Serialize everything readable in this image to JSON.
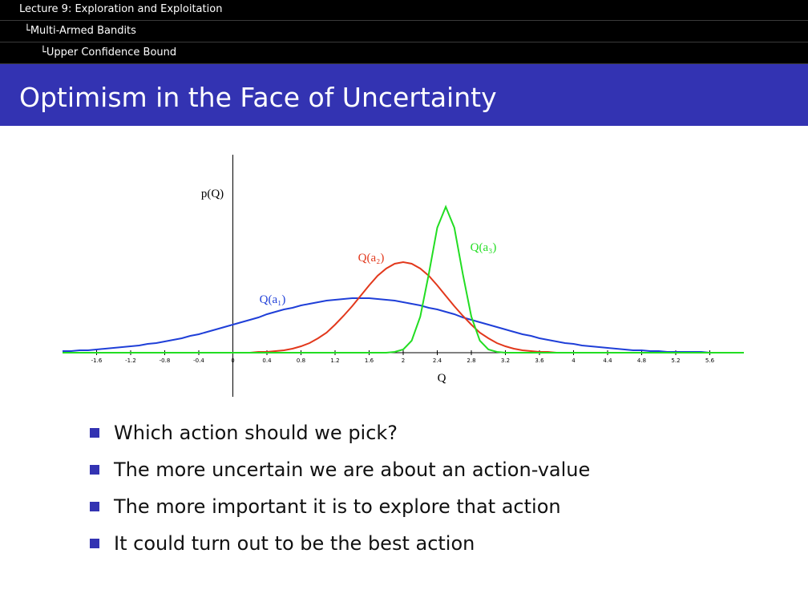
{
  "header": {
    "lecture": "Lecture 9: Exploration and Exploitation",
    "section": "Multi-Armed Bandits",
    "subsection": "Upper Confidence Bound"
  },
  "title": "Optimism in the Face of Uncertainty",
  "chart_data": {
    "type": "line",
    "x_label": "Q",
    "y_label": "p(Q)",
    "x": [
      -2,
      -1.9,
      -1.8,
      -1.7,
      -1.6,
      -1.5,
      -1.4,
      -1.3,
      -1.2,
      -1.1,
      -1,
      -0.9,
      -0.8,
      -0.7,
      -0.6,
      -0.5,
      -0.4,
      -0.3,
      -0.2,
      -0.1,
      0,
      0.1,
      0.2,
      0.3,
      0.4,
      0.5,
      0.6,
      0.7,
      0.8,
      0.9,
      1,
      1.1,
      1.2,
      1.3,
      1.4,
      1.5,
      1.6,
      1.7,
      1.8,
      1.9,
      2,
      2.1,
      2.2,
      2.3,
      2.4,
      2.5,
      2.6,
      2.7,
      2.8,
      2.9,
      3,
      3.1,
      3.2,
      3.3,
      3.4,
      3.5,
      3.6,
      3.7,
      3.8,
      3.9,
      4,
      4.1,
      4.2,
      4.3,
      4.4,
      4.5,
      4.6,
      4.7,
      4.8,
      4.9,
      5,
      5.1,
      5.2,
      5.3,
      5.4,
      5.5,
      5.6,
      5.7,
      5.8,
      5.9,
      6
    ],
    "series": [
      {
        "name": "Q(a₁)",
        "color": "#1f3fd8",
        "values": [
          0.02,
          0.02,
          0.03,
          0.03,
          0.04,
          0.05,
          0.06,
          0.07,
          0.08,
          0.09,
          0.11,
          0.12,
          0.14,
          0.16,
          0.18,
          0.21,
          0.23,
          0.26,
          0.29,
          0.32,
          0.35,
          0.38,
          0.41,
          0.44,
          0.48,
          0.51,
          0.54,
          0.56,
          0.59,
          0.61,
          0.63,
          0.65,
          0.66,
          0.67,
          0.68,
          0.68,
          0.68,
          0.67,
          0.66,
          0.65,
          0.63,
          0.61,
          0.59,
          0.56,
          0.54,
          0.51,
          0.48,
          0.44,
          0.41,
          0.38,
          0.35,
          0.32,
          0.29,
          0.26,
          0.23,
          0.21,
          0.18,
          0.16,
          0.14,
          0.12,
          0.11,
          0.09,
          0.08,
          0.07,
          0.06,
          0.05,
          0.04,
          0.03,
          0.03,
          0.02,
          0.02,
          0.01,
          0.01,
          0.01,
          0.01,
          0.01,
          0,
          0,
          0,
          0,
          0
        ]
      },
      {
        "name": "Q(a₂)",
        "color": "#e2381c",
        "values": [
          0,
          0,
          0,
          0,
          0,
          0,
          0,
          0,
          0,
          0,
          0,
          0,
          0,
          0,
          0,
          0,
          0,
          0,
          0,
          0,
          0,
          0,
          0,
          0.01,
          0.01,
          0.02,
          0.03,
          0.05,
          0.08,
          0.12,
          0.18,
          0.25,
          0.35,
          0.46,
          0.58,
          0.71,
          0.84,
          0.96,
          1.05,
          1.11,
          1.13,
          1.11,
          1.05,
          0.96,
          0.84,
          0.71,
          0.58,
          0.46,
          0.35,
          0.25,
          0.18,
          0.12,
          0.08,
          0.05,
          0.03,
          0.02,
          0.01,
          0.01,
          0,
          0,
          0,
          0,
          0,
          0,
          0,
          0,
          0,
          0,
          0,
          0,
          0,
          0,
          0,
          0,
          0,
          0,
          0,
          0,
          0,
          0,
          0
        ]
      },
      {
        "name": "Q(a₃)",
        "color": "#22dd22",
        "values": [
          0,
          0,
          0,
          0,
          0,
          0,
          0,
          0,
          0,
          0,
          0,
          0,
          0,
          0,
          0,
          0,
          0,
          0,
          0,
          0,
          0,
          0,
          0,
          0,
          0,
          0,
          0,
          0,
          0,
          0,
          0,
          0,
          0,
          0,
          0,
          0,
          0,
          0,
          0,
          0.01,
          0.04,
          0.15,
          0.45,
          0.98,
          1.56,
          1.82,
          1.56,
          0.98,
          0.45,
          0.15,
          0.04,
          0.01,
          0,
          0,
          0,
          0,
          0,
          0,
          0,
          0,
          0,
          0,
          0,
          0,
          0,
          0,
          0,
          0,
          0,
          0,
          0,
          0,
          0,
          0,
          0,
          0,
          0,
          0,
          0,
          0,
          0
        ]
      }
    ],
    "xlim": [
      -2,
      6
    ],
    "ylim": [
      -0.55,
      2.47
    ],
    "xticks": [
      -1.6,
      -1.2,
      -0.8,
      -0.4,
      0,
      0.4,
      0.8,
      1.2,
      1.6,
      2,
      2.4,
      2.8,
      3.2,
      3.6,
      4,
      4.4,
      4.8,
      5.2,
      5.6
    ]
  },
  "bullets": [
    "Which action should we pick?",
    "The more uncertain we are about an action-value",
    "The more important it is to explore that action",
    "It could turn out to be the best action"
  ]
}
